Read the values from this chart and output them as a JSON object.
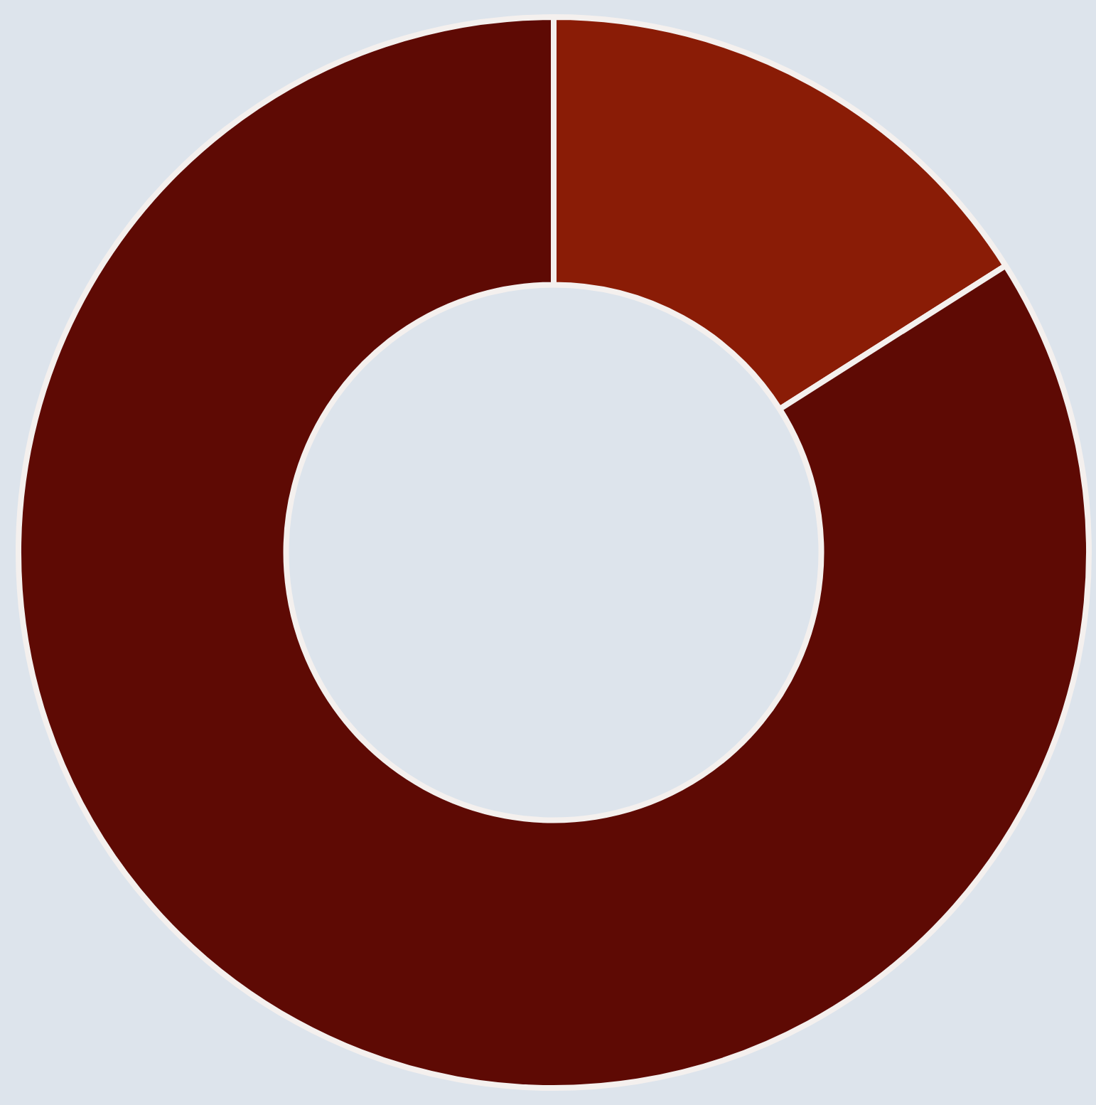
{
  "chart_data": {
    "type": "donut",
    "categories": [
      null,
      null
    ],
    "values": [
      16,
      84
    ],
    "colors": [
      "#8a1c06",
      "#5e0a04"
    ],
    "legend": false
  }
}
